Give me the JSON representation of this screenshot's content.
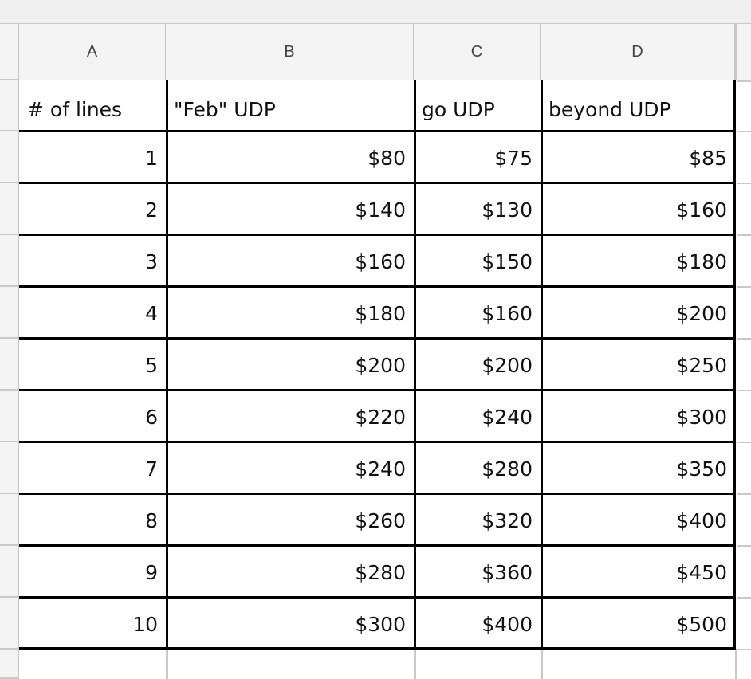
{
  "columns": [
    "A",
    "B",
    "C",
    "D"
  ],
  "header": [
    "# of lines",
    "\"Feb\" UDP",
    "go UDP",
    "beyond UDP"
  ],
  "rows": [
    [
      "1",
      "$80",
      "$75",
      "$85"
    ],
    [
      "2",
      "$140",
      "$130",
      "$160"
    ],
    [
      "3",
      "$160",
      "$150",
      "$180"
    ],
    [
      "4",
      "$180",
      "$160",
      "$200"
    ],
    [
      "5",
      "$200",
      "$200",
      "$250"
    ],
    [
      "6",
      "$220",
      "$240",
      "$300"
    ],
    [
      "7",
      "$240",
      "$280",
      "$350"
    ],
    [
      "8",
      "$260",
      "$320",
      "$400"
    ],
    [
      "9",
      "$280",
      "$360",
      "$450"
    ],
    [
      "10",
      "$300",
      "$400",
      "$500"
    ]
  ]
}
